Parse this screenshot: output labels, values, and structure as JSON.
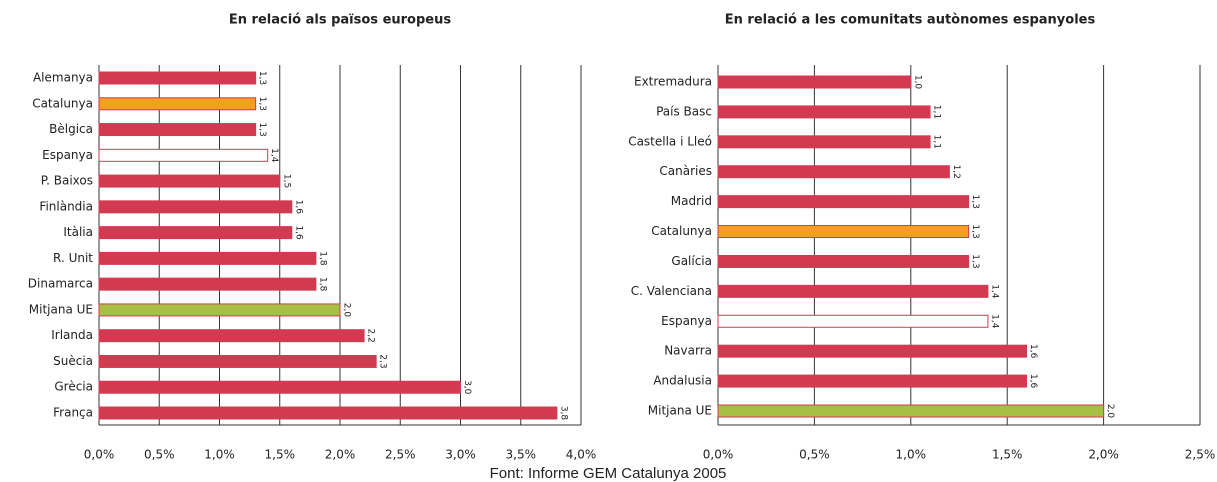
{
  "chart_data": [
    {
      "type": "barh",
      "title": "En relació als països europeus",
      "categories": [
        "Alemanya",
        "Catalunya",
        "Bèlgica",
        "Espanya",
        "P. Baixos",
        "Finlàndia",
        "Itàlia",
        "R. Unit",
        "Dinamarca",
        "Mitjana UE",
        "Irlanda",
        "Suècia",
        "Grècia",
        "França"
      ],
      "values": [
        1.3,
        1.3,
        1.3,
        1.4,
        1.5,
        1.6,
        1.6,
        1.8,
        1.8,
        2.0,
        2.2,
        2.3,
        3.0,
        3.8
      ],
      "value_labels": [
        "1,3",
        "1,3",
        "1,3",
        "1,4",
        "1,5",
        "1,6",
        "1,6",
        "1,8",
        "1,8",
        "2,0",
        "2,2",
        "2,3",
        "3,0",
        "3,8"
      ],
      "colors": [
        "#d23a52",
        "#f0a21e",
        "#d23a52",
        "#ffffff",
        "#d23a52",
        "#d23a52",
        "#d23a52",
        "#d23a52",
        "#d23a52",
        "#a6c043",
        "#d23a52",
        "#d23a52",
        "#d23a52",
        "#d23a52"
      ],
      "edgecolor": "#d23a52",
      "xlim": [
        0,
        4.0
      ],
      "xticks": [
        {
          "value": 0,
          "label": "0,0%"
        },
        {
          "value": 0.5,
          "label": "0,5%"
        },
        {
          "value": 1.0,
          "label": "1,0%"
        },
        {
          "value": 1.5,
          "label": "1,5%"
        },
        {
          "value": 2.0,
          "label": "2,0%"
        },
        {
          "value": 2.5,
          "label": "2,5%"
        },
        {
          "value": 3.0,
          "label": "3,0%"
        },
        {
          "value": 3.5,
          "label": "3,5%"
        },
        {
          "value": 4.0,
          "label": "4,0%"
        }
      ],
      "grid": true
    },
    {
      "type": "barh",
      "title": "En relació a les comunitats autònomes espanyoles",
      "categories": [
        "Extremadura",
        "País Basc",
        "Castella i Lleó",
        "Canàries",
        "Madrid",
        "Catalunya",
        "Galícia",
        "C. Valenciana",
        "Espanya",
        "Navarra",
        "Andalusia",
        "Mitjana UE"
      ],
      "values": [
        1.0,
        1.1,
        1.1,
        1.2,
        1.3,
        1.3,
        1.3,
        1.4,
        1.4,
        1.6,
        1.6,
        2.0
      ],
      "value_labels": [
        "1,0",
        "1,1",
        "1,1",
        "1,2",
        "1,3",
        "1,3",
        "1,3",
        "1,4",
        "1,4",
        "1,6",
        "1,6",
        "2,0"
      ],
      "colors": [
        "#d23a52",
        "#d23a52",
        "#d23a52",
        "#d23a52",
        "#d23a52",
        "#f0a21e",
        "#d23a52",
        "#d23a52",
        "#ffffff",
        "#d23a52",
        "#d23a52",
        "#a6c043"
      ],
      "edgecolor": "#d23a52",
      "xlim": [
        0,
        2.5
      ],
      "xticks": [
        {
          "value": 0,
          "label": "0,0%"
        },
        {
          "value": 0.5,
          "label": "0,5%"
        },
        {
          "value": 1.0,
          "label": "1,0%"
        },
        {
          "value": 1.5,
          "label": "1,5%"
        },
        {
          "value": 2.0,
          "label": "2,0%"
        },
        {
          "value": 2.5,
          "label": "2,5%"
        }
      ],
      "grid": true
    }
  ],
  "source": "Font: Informe GEM Catalunya 2005"
}
